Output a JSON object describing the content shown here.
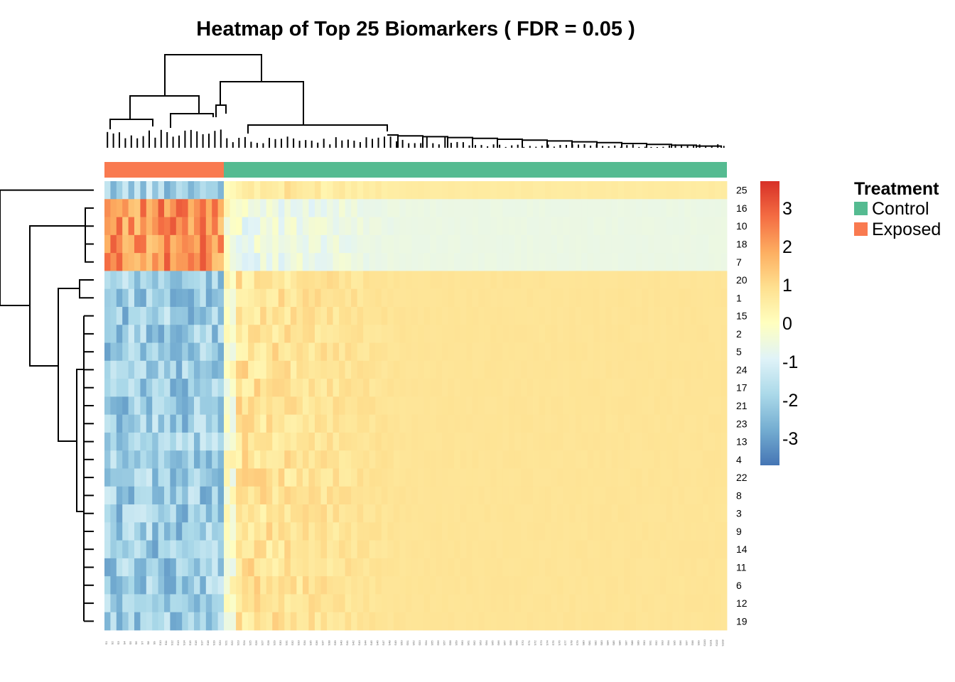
{
  "chart_data": {
    "type": "heatmap",
    "title": "Heatmap of Top 25 Biomarkers ( FDR = 0.05 )",
    "rows": [
      "25",
      "16",
      "10",
      "18",
      "7",
      "20",
      "1",
      "15",
      "2",
      "5",
      "24",
      "17",
      "21",
      "23",
      "13",
      "4",
      "22",
      "8",
      "3",
      "9",
      "14",
      "11",
      "6",
      "12",
      "19"
    ],
    "n_columns": 103,
    "n_exposed_columns": 20,
    "column_annotation": {
      "legend_title": "Treatment",
      "groups": [
        {
          "name": "Control",
          "color": "#55bb91"
        },
        {
          "name": "Exposed",
          "color": "#f97a50"
        }
      ]
    },
    "colorbar": {
      "range": [
        -3.7,
        3.7
      ],
      "ticks": [
        "3",
        "2",
        "1",
        "0",
        "-1",
        "-2",
        "-3"
      ],
      "colors": [
        "#4575b4",
        "#74add1",
        "#abd9e9",
        "#e0f3f8",
        "#ffffbf",
        "#fee090",
        "#fdae61",
        "#f46d43",
        "#d73027"
      ]
    },
    "row_cluster_means": [
      {
        "rows": [
          "25"
        ],
        "exposed_mean": -1.9,
        "control_mean": 0.6
      },
      {
        "rows": [
          "16",
          "10",
          "18",
          "7"
        ],
        "exposed_mean": 2.2,
        "control_mean": -0.6
      },
      {
        "rows": [
          "20",
          "1",
          "15",
          "2",
          "5",
          "24",
          "17",
          "21",
          "23",
          "13",
          "4",
          "22",
          "8",
          "3",
          "9",
          "14",
          "11",
          "6",
          "12",
          "19"
        ],
        "exposed_mean": -2.1,
        "control_mean": 0.8
      }
    ]
  }
}
